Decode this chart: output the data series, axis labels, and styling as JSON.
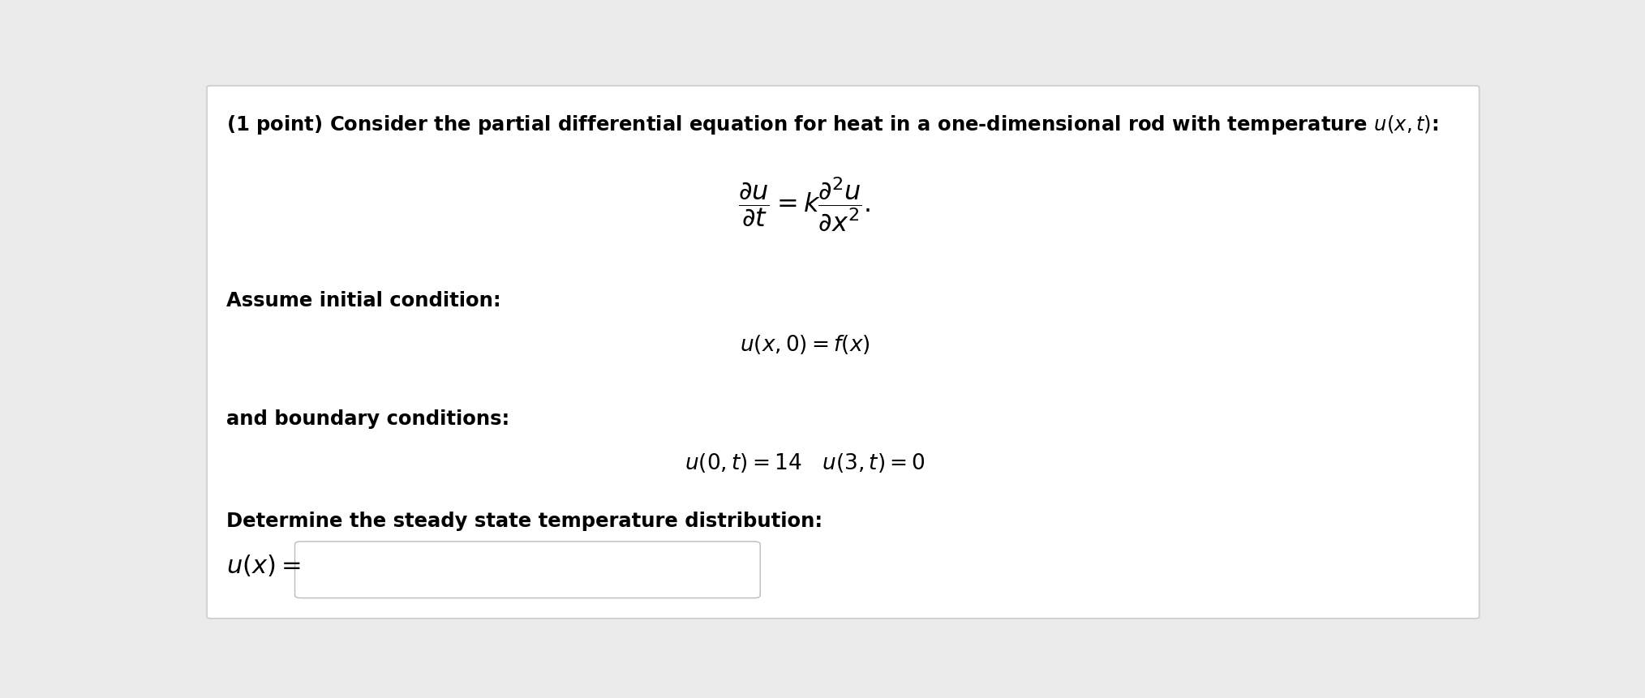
{
  "bg_color": "#ebebeb",
  "box_color": "#ffffff",
  "border_color": "#cccccc",
  "text_color": "#000000",
  "title_text": "(1 point) Consider the partial differential equation for heat in a one-dimensional rod with temperature $u(x, t)$:",
  "pde_latex": "$\\dfrac{\\partial u}{\\partial t} = k\\dfrac{\\partial^2 u}{\\partial x^2}.$",
  "initial_cond_label": "Assume initial condition:",
  "initial_cond_eq": "$u(x, 0) = f(x)$",
  "boundary_cond_label": "and boundary conditions:",
  "boundary_cond_eq": "$u(0, t) = 14 \\quad u(3, t) = 0$",
  "steady_state_label": "Determine the steady state temperature distribution:",
  "answer_label": "$u(x) =$",
  "title_fontsize": 17.5,
  "label_fontsize": 17.5,
  "eq_fontsize": 19,
  "pde_fontsize": 23,
  "answer_label_fontsize": 22
}
